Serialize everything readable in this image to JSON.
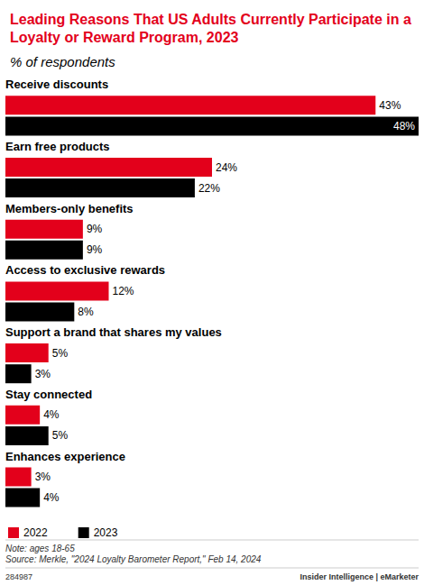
{
  "chart_data": {
    "type": "bar",
    "orientation": "horizontal",
    "title": "Leading Reasons That US Adults Currently Participate in a Loyalty or Reward Program, 2023",
    "subtitle": "% of respondents",
    "categories": [
      "Receive discounts",
      "Earn free products",
      "Members-only benefits",
      "Access to exclusive rewards",
      "Support a brand that shares my values",
      "Stay connected",
      "Enhances experience"
    ],
    "series": [
      {
        "name": "2022",
        "color": "#e3001b",
        "values": [
          43,
          24,
          9,
          12,
          5,
          4,
          3
        ],
        "value_labels": [
          "43%",
          "24%",
          "9%",
          "12%",
          "5%",
          "4%",
          "3%"
        ]
      },
      {
        "name": "2023",
        "color": "#000000",
        "values": [
          48,
          22,
          9,
          8,
          3,
          5,
          4
        ],
        "value_labels": [
          "48%",
          "22%",
          "9%",
          "8%",
          "3%",
          "5%",
          "4%"
        ]
      }
    ],
    "xlim": [
      0,
      48
    ],
    "data_labels": true,
    "tick_labels": false,
    "grid": false,
    "legend": "bottom-left",
    "note": "Note: ages 18-65",
    "source": "Source: Merkle, \"2024 Loyalty Barometer Report,\" Feb 14, 2024",
    "chart_id": "284987",
    "credit": "Insider Intelligence | eMarketer"
  }
}
